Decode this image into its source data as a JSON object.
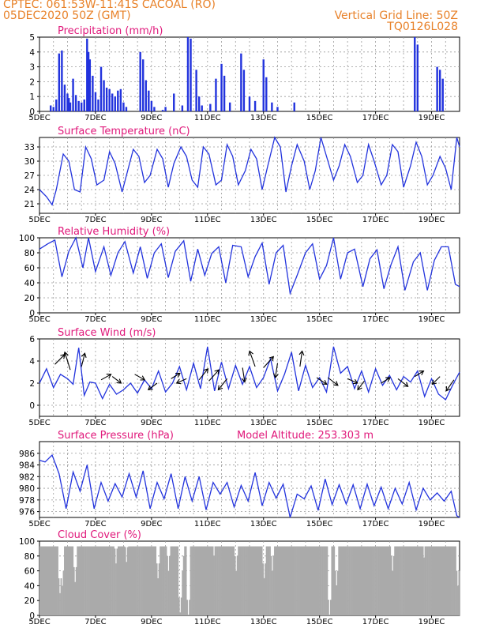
{
  "header": {
    "left_line1": "CPTEC:   061:53W-11:41S   CACOAL (RO)",
    "left_line2": "05DEC2020 50Z (GMT)",
    "right_line1": "Vertical Grid Line: 50Z",
    "right_line2": "TQ0126L028"
  },
  "colors": {
    "header": "#e8822a",
    "title": "#e0197b",
    "series": "#2233dd",
    "cloud": "#aaaaaa",
    "arrow": "#000000"
  },
  "chart_data": [
    {
      "id": "precip",
      "type": "bar",
      "title": "Precipitation (mm/h)",
      "ylim": [
        0,
        5
      ],
      "yticks": [
        "0",
        "1",
        "2",
        "3",
        "4",
        "5"
      ],
      "xticks": [
        "5DEC",
        "7DEC",
        "9DEC",
        "11DEC",
        "13DEC",
        "15DEC",
        "17DEC",
        "19DEC"
      ],
      "x_days": [
        0,
        15
      ],
      "bars": [
        [
          0.4,
          0.4
        ],
        [
          0.5,
          0.3
        ],
        [
          0.6,
          0.8
        ],
        [
          0.7,
          3.9
        ],
        [
          0.8,
          4.1
        ],
        [
          0.9,
          1.8
        ],
        [
          1.0,
          1.2
        ],
        [
          1.05,
          0.9
        ],
        [
          1.1,
          0.6
        ],
        [
          1.2,
          2.2
        ],
        [
          1.3,
          1.1
        ],
        [
          1.4,
          0.7
        ],
        [
          1.5,
          0.6
        ],
        [
          1.6,
          0.8
        ],
        [
          1.7,
          4.9
        ],
        [
          1.75,
          4.0
        ],
        [
          1.8,
          3.5
        ],
        [
          1.9,
          2.4
        ],
        [
          2.0,
          1.3
        ],
        [
          2.1,
          0.8
        ],
        [
          2.2,
          3.0
        ],
        [
          2.3,
          2.1
        ],
        [
          2.4,
          1.6
        ],
        [
          2.5,
          1.5
        ],
        [
          2.6,
          1.2
        ],
        [
          2.7,
          1.0
        ],
        [
          2.8,
          1.4
        ],
        [
          2.9,
          1.5
        ],
        [
          3.0,
          0.6
        ],
        [
          3.1,
          0.3
        ],
        [
          3.6,
          4.0
        ],
        [
          3.7,
          3.5
        ],
        [
          3.8,
          2.1
        ],
        [
          3.9,
          1.4
        ],
        [
          4.0,
          0.7
        ],
        [
          4.1,
          0.3
        ],
        [
          4.4,
          0.1
        ],
        [
          4.5,
          0.3
        ],
        [
          4.8,
          1.2
        ],
        [
          5.1,
          0.4
        ],
        [
          5.3,
          5.0
        ],
        [
          5.4,
          4.9
        ],
        [
          5.6,
          2.8
        ],
        [
          5.7,
          1.0
        ],
        [
          5.8,
          0.4
        ],
        [
          6.1,
          0.5
        ],
        [
          6.3,
          2.2
        ],
        [
          6.5,
          3.2
        ],
        [
          6.6,
          2.4
        ],
        [
          6.8,
          0.6
        ],
        [
          7.2,
          3.9
        ],
        [
          7.3,
          2.8
        ],
        [
          7.5,
          1.0
        ],
        [
          7.7,
          0.7
        ],
        [
          8.0,
          3.5
        ],
        [
          8.1,
          2.3
        ],
        [
          8.3,
          0.6
        ],
        [
          8.5,
          0.3
        ],
        [
          9.1,
          0.6
        ],
        [
          13.4,
          5.0
        ],
        [
          13.5,
          4.5
        ],
        [
          14.2,
          3.0
        ],
        [
          14.3,
          2.8
        ],
        [
          14.4,
          2.2
        ]
      ]
    },
    {
      "id": "temp",
      "type": "line",
      "title": "Surface Temperature (nC)",
      "ylim": [
        19,
        35
      ],
      "ytick_values": [
        21,
        24,
        27,
        30,
        33
      ],
      "yticks": [
        "21",
        "24",
        "27",
        "30",
        "33"
      ],
      "xticks": [
        "5DEC",
        "7DEC",
        "9DEC",
        "11DEC",
        "13DEC",
        "15DEC",
        "17DEC",
        "19DEC"
      ],
      "x_days": [
        0,
        15
      ],
      "x": [
        0,
        0.25,
        0.45,
        0.6,
        0.85,
        1.05,
        1.25,
        1.45,
        1.65,
        1.85,
        2.05,
        2.3,
        2.5,
        2.7,
        2.95,
        3.15,
        3.35,
        3.55,
        3.75,
        3.95,
        4.2,
        4.4,
        4.6,
        4.8,
        5.05,
        5.25,
        5.45,
        5.65,
        5.85,
        6.05,
        6.3,
        6.5,
        6.7,
        6.9,
        7.1,
        7.35,
        7.55,
        7.75,
        7.95,
        8.15,
        8.4,
        8.6,
        8.8,
        9.0,
        9.2,
        9.45,
        9.65,
        9.85,
        10.05,
        10.3,
        10.5,
        10.7,
        10.9,
        11.1,
        11.35,
        11.55,
        11.75,
        11.95,
        12.2,
        12.4,
        12.6,
        12.8,
        13.0,
        13.25,
        13.45,
        13.65,
        13.85,
        14.05,
        14.3,
        14.5,
        14.7,
        14.9,
        15.0
      ],
      "values": [
        24,
        22.5,
        20.8,
        24,
        31.5,
        30,
        24,
        23.5,
        33,
        30.5,
        25,
        26,
        32,
        29.5,
        23.5,
        28,
        32.5,
        31,
        25.5,
        27,
        32.5,
        30.5,
        24.5,
        29.5,
        33,
        31,
        26,
        24.5,
        33,
        31.5,
        25,
        26,
        33.5,
        31,
        25,
        28,
        32.5,
        30.5,
        24,
        29,
        35,
        33,
        23.5,
        29,
        33.5,
        30,
        24,
        28,
        35,
        30,
        26,
        29,
        33.5,
        31,
        25.5,
        27,
        33.5,
        30,
        25,
        27,
        33.5,
        32,
        24.5,
        29,
        34,
        31,
        25,
        27,
        31,
        28.5,
        24,
        35,
        33
      ]
    },
    {
      "id": "rh",
      "type": "line",
      "title": "Relative Humidity (%)",
      "ylim": [
        0,
        100
      ],
      "ytick_values": [
        0,
        20,
        40,
        60,
        80,
        100
      ],
      "yticks": [
        "0",
        "20",
        "40",
        "60",
        "80",
        "100"
      ],
      "xticks": [
        "5DEC",
        "7DEC",
        "9DEC",
        "11DEC",
        "13DEC",
        "15DEC",
        "17DEC",
        "19DEC"
      ],
      "x_days": [
        0,
        15
      ],
      "x": [
        0,
        0.3,
        0.55,
        0.8,
        1.05,
        1.3,
        1.55,
        1.75,
        2.0,
        2.3,
        2.55,
        2.8,
        3.05,
        3.35,
        3.6,
        3.85,
        4.1,
        4.35,
        4.6,
        4.85,
        5.15,
        5.4,
        5.65,
        5.9,
        6.15,
        6.4,
        6.65,
        6.9,
        7.2,
        7.45,
        7.7,
        7.95,
        8.2,
        8.45,
        8.7,
        8.95,
        9.2,
        9.5,
        9.75,
        10.0,
        10.25,
        10.5,
        10.75,
        11.0,
        11.25,
        11.55,
        11.8,
        12.05,
        12.3,
        12.55,
        12.8,
        13.05,
        13.35,
        13.6,
        13.85,
        14.1,
        14.35,
        14.6,
        14.85,
        15.0
      ],
      "values": [
        85,
        92,
        97,
        48,
        82,
        100,
        60,
        100,
        55,
        88,
        50,
        80,
        95,
        53,
        88,
        46,
        80,
        92,
        47,
        82,
        96,
        42,
        85,
        50,
        79,
        88,
        40,
        90,
        88,
        48,
        75,
        93,
        38,
        80,
        90,
        26,
        50,
        80,
        92,
        45,
        63,
        100,
        45,
        80,
        85,
        35,
        72,
        84,
        32,
        64,
        88,
        30,
        68,
        80,
        30,
        70,
        88,
        88,
        38,
        35
      ]
    },
    {
      "id": "wind",
      "type": "line",
      "title": "Surface Wind (m/s)",
      "ylim": [
        -1,
        6
      ],
      "ytick_values": [
        0,
        2,
        4,
        6
      ],
      "yticks": [
        "0",
        "2",
        "4",
        "6"
      ],
      "xticks": [
        "5DEC",
        "7DEC",
        "9DEC",
        "11DEC",
        "13DEC",
        "15DEC",
        "17DEC",
        "19DEC"
      ],
      "x_days": [
        0,
        15
      ],
      "x": [
        0,
        0.25,
        0.5,
        0.75,
        1.0,
        1.2,
        1.4,
        1.6,
        1.8,
        2.0,
        2.25,
        2.5,
        2.75,
        3.0,
        3.25,
        3.5,
        3.75,
        4.0,
        4.25,
        4.5,
        4.75,
        5.0,
        5.25,
        5.5,
        5.75,
        6.0,
        6.25,
        6.5,
        6.75,
        7.0,
        7.25,
        7.5,
        7.75,
        8.0,
        8.25,
        8.5,
        8.75,
        9.0,
        9.25,
        9.5,
        9.75,
        10.0,
        10.25,
        10.5,
        10.75,
        11.0,
        11.25,
        11.5,
        11.75,
        12.0,
        12.25,
        12.5,
        12.75,
        13.0,
        13.25,
        13.5,
        13.75,
        14.0,
        14.25,
        14.5,
        14.75,
        15.0
      ],
      "values": [
        2.0,
        3.3,
        1.6,
        2.8,
        2.4,
        1.9,
        5.2,
        0.9,
        2.1,
        2.0,
        0.6,
        1.9,
        1.0,
        1.4,
        2.0,
        1.1,
        2.3,
        1.5,
        3.1,
        1.2,
        2.0,
        3.5,
        1.4,
        3.8,
        1.5,
        5.3,
        1.3,
        3.9,
        1.5,
        3.6,
        1.9,
        3.5,
        1.6,
        2.5,
        4.2,
        1.3,
        2.8,
        4.8,
        1.3,
        3.6,
        1.6,
        2.5,
        1.2,
        5.3,
        2.9,
        3.5,
        1.5,
        3.1,
        1.2,
        3.3,
        1.8,
        2.7,
        1.4,
        2.6,
        2.1,
        3.1,
        0.8,
        2.4,
        1.0,
        0.5,
        1.8,
        3.0
      ],
      "arrows": [
        [
          0.55,
          3.7,
          0.9,
          0.9
        ],
        [
          1.1,
          3.2,
          -0.5,
          1.6
        ],
        [
          1.5,
          3.5,
          0.3,
          1.2
        ],
        [
          2.2,
          2.3,
          0.9,
          0.5
        ],
        [
          2.6,
          2.6,
          0.8,
          -0.6
        ],
        [
          3.4,
          2.8,
          0.9,
          -0.5
        ],
        [
          4.2,
          2.0,
          -0.8,
          -0.6
        ],
        [
          4.7,
          2.4,
          0.8,
          0.5
        ],
        [
          5.25,
          2.4,
          -0.9,
          -0.4
        ],
        [
          5.7,
          2.3,
          0.8,
          1.0
        ],
        [
          6.05,
          2.2,
          0.9,
          1.0
        ],
        [
          6.7,
          2.4,
          -0.8,
          -1.0
        ],
        [
          7.25,
          3.4,
          0.2,
          -1.3
        ],
        [
          7.7,
          3.5,
          -0.5,
          1.4
        ],
        [
          8.0,
          3.4,
          0.9,
          1.0
        ],
        [
          8.5,
          3.8,
          -0.2,
          -1.3
        ],
        [
          9.3,
          3.5,
          0.2,
          1.4
        ],
        [
          9.9,
          2.5,
          0.9,
          -0.6
        ],
        [
          10.3,
          2.5,
          0.9,
          -0.7
        ],
        [
          11.0,
          2.4,
          0.9,
          -0.4
        ],
        [
          11.6,
          2.2,
          -0.6,
          -0.8
        ],
        [
          12.2,
          2.0,
          0.8,
          0.5
        ],
        [
          12.8,
          2.4,
          0.9,
          -0.7
        ],
        [
          13.4,
          2.6,
          0.8,
          0.5
        ],
        [
          14.3,
          2.6,
          -0.7,
          -0.7
        ],
        [
          14.8,
          2.3,
          -0.7,
          -1.0
        ]
      ]
    },
    {
      "id": "pres",
      "type": "line",
      "title": "Surface Pressure (hPa)",
      "annotation": "Model Altitude: 253.303 m",
      "ylim": [
        975,
        988
      ],
      "ytick_values": [
        976,
        978,
        980,
        982,
        984,
        986
      ],
      "yticks": [
        "976",
        "978",
        "980",
        "982",
        "984",
        "986"
      ],
      "xticks": [
        "5DEC",
        "7DEC",
        "9DEC",
        "11DEC",
        "13DEC",
        "15DEC",
        "17DEC",
        "19DEC"
      ],
      "x_days": [
        0,
        15
      ],
      "x": [
        0,
        0.2,
        0.45,
        0.7,
        0.95,
        1.2,
        1.45,
        1.7,
        1.95,
        2.2,
        2.45,
        2.7,
        2.95,
        3.2,
        3.45,
        3.7,
        3.95,
        4.2,
        4.45,
        4.7,
        4.95,
        5.2,
        5.45,
        5.7,
        5.95,
        6.2,
        6.45,
        6.7,
        6.95,
        7.2,
        7.45,
        7.7,
        7.95,
        8.2,
        8.45,
        8.7,
        8.95,
        9.2,
        9.45,
        9.7,
        9.95,
        10.2,
        10.45,
        10.7,
        10.95,
        11.2,
        11.45,
        11.7,
        11.95,
        12.2,
        12.45,
        12.7,
        12.95,
        13.2,
        13.45,
        13.7,
        13.95,
        14.2,
        14.45,
        14.7,
        14.9,
        15.0
      ],
      "values": [
        984.8,
        984.5,
        985.7,
        982.5,
        976.5,
        982.8,
        979.5,
        984,
        976.5,
        981,
        977.8,
        980.8,
        978.5,
        982.5,
        978.5,
        983,
        976.5,
        981,
        978.2,
        982.5,
        976.5,
        982,
        977.8,
        982,
        976.3,
        981,
        979,
        981,
        976.8,
        980.5,
        977.8,
        982.7,
        977,
        981,
        978.3,
        980.7,
        975,
        979,
        978.2,
        980.4,
        976.2,
        981.6,
        977.2,
        980.6,
        977.3,
        980.6,
        976.5,
        980.7,
        977,
        980.2,
        976.5,
        980,
        977.3,
        981,
        976.3,
        980,
        978,
        979.2,
        977.8,
        979.5,
        975.3,
        975
      ]
    },
    {
      "id": "cloud",
      "type": "bar",
      "title": "Cloud Cover (%)",
      "ylim": [
        0,
        100
      ],
      "ytick_values": [
        0,
        20,
        40,
        60,
        80,
        100
      ],
      "yticks": [
        "0",
        "20",
        "40",
        "60",
        "80",
        "100"
      ],
      "xticks": [
        "5DEC",
        "7DEC",
        "9DEC",
        "11DEC",
        "13DEC",
        "15DEC",
        "17DEC",
        "19DEC"
      ],
      "x_days": [
        0,
        15
      ],
      "base": 93,
      "dips": [
        [
          0.7,
          30
        ],
        [
          0.8,
          40
        ],
        [
          1.25,
          45
        ],
        [
          2.7,
          70
        ],
        [
          3.1,
          72
        ],
        [
          4.2,
          50
        ],
        [
          4.6,
          60
        ],
        [
          5.0,
          4
        ],
        [
          5.1,
          60
        ],
        [
          5.3,
          1
        ],
        [
          6.2,
          80
        ],
        [
          7.0,
          60
        ],
        [
          8.0,
          50
        ],
        [
          8.3,
          60
        ],
        [
          10.35,
          1
        ],
        [
          10.6,
          40
        ],
        [
          12.6,
          60
        ],
        [
          13.7,
          78
        ],
        [
          14.9,
          40
        ]
      ]
    }
  ]
}
